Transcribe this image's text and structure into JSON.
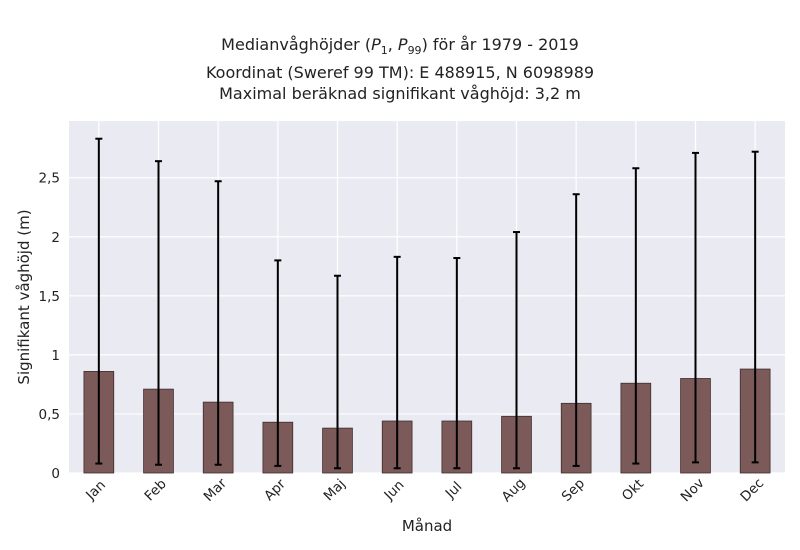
{
  "chart_data": {
    "type": "bar",
    "title_lines": [
      "Medianvåghöjder (P1, P99) för år 1979 - 2019",
      "Koordinat (Sweref 99 TM): E 488915, N 6098989",
      "Maximal beräknad signifikant våghöjd: 3,2 m"
    ],
    "xlabel": "Månad",
    "ylabel": "Signifikant våghöjd (m)",
    "categories": [
      "Jan",
      "Feb",
      "Mar",
      "Apr",
      "Maj",
      "Jun",
      "Jul",
      "Aug",
      "Sep",
      "Okt",
      "Nov",
      "Dec"
    ],
    "values": [
      0.86,
      0.71,
      0.6,
      0.43,
      0.38,
      0.44,
      0.44,
      0.48,
      0.59,
      0.76,
      0.8,
      0.88
    ],
    "err_low": [
      0.08,
      0.07,
      0.07,
      0.06,
      0.04,
      0.04,
      0.04,
      0.04,
      0.06,
      0.08,
      0.09,
      0.09
    ],
    "err_high": [
      2.83,
      2.64,
      2.47,
      1.8,
      1.67,
      1.83,
      1.82,
      2.04,
      2.36,
      2.58,
      2.71,
      2.72
    ],
    "ylim": [
      0,
      2.98
    ],
    "yticks": [
      0,
      0.5,
      1,
      1.5,
      2,
      2.5
    ],
    "ytick_labels": [
      "0",
      "0,5",
      "1",
      "1,5",
      "2",
      "2,5"
    ],
    "grid": true,
    "colors": {
      "bar": "#7d5a5a",
      "bar_edge": "#3f2d2d",
      "error": "#000000",
      "plot_bg": "#eaeaf2",
      "grid": "#ffffff"
    }
  }
}
